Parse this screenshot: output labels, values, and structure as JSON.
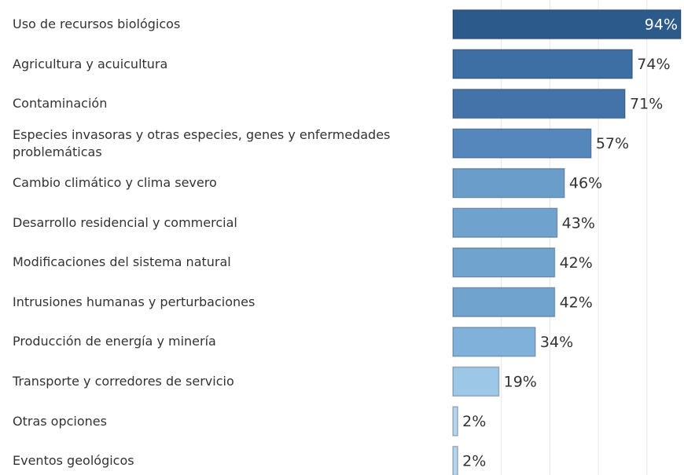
{
  "chart_data": {
    "type": "barh",
    "categories": [
      "Uso de recursos biológicos",
      "Agricultura y acuicultura",
      "Contaminación",
      "Especies invasoras y otras especies, genes y enfermedades problemáticas",
      "Cambio climático y clima severo",
      "Desarrollo residencial y commercial",
      "Modificaciones del sistema natural",
      "Intrusiones humanas y perturbaciones",
      "Producción de energía y minería",
      "Transporte y corredores de servicio",
      "Otras opciones",
      "Eventos geológicos"
    ],
    "values": [
      94,
      74,
      71,
      57,
      46,
      43,
      42,
      42,
      34,
      19,
      2,
      2
    ],
    "value_labels": [
      "94%",
      "74%",
      "71%",
      "57%",
      "46%",
      "43%",
      "42%",
      "42%",
      "34%",
      "19%",
      "2%",
      "2%"
    ],
    "colors": [
      "#2c5a8b",
      "#3d6ea4",
      "#4373a8",
      "#5587bc",
      "#6a9dc9",
      "#6fa2cc",
      "#70a3cd",
      "#70a3cd",
      "#7fb1da",
      "#9cc7e7",
      "#b3d5ef",
      "#b3d5ef"
    ],
    "xlim": [
      0,
      94
    ],
    "gridlines": [
      20,
      40,
      60,
      80
    ]
  }
}
